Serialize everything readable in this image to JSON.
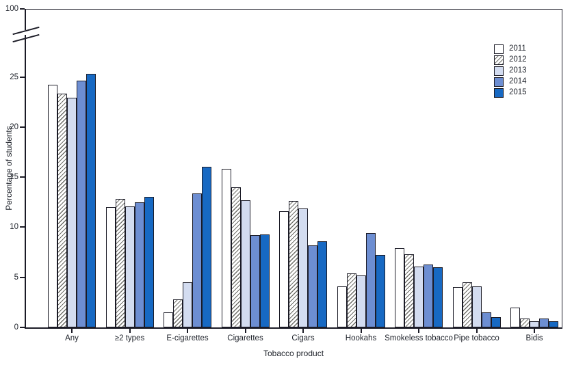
{
  "figure": {
    "background": "#ffffff"
  },
  "chart_data": {
    "type": "bar",
    "xlabel": "Tobacco product",
    "ylabel": "Percentage of students",
    "categories": [
      "Any",
      "≥2 types",
      "E-cigarettes",
      "Cigarettes",
      "Cigars",
      "Hookahs",
      "Smokeless tobacco",
      "Pipe tobacco",
      "Bidis"
    ],
    "series": [
      {
        "name": "2011",
        "fill": "#ffffff",
        "pattern": "none",
        "values": [
          24.2,
          12.0,
          1.5,
          15.8,
          11.6,
          4.1,
          7.9,
          4.0,
          2.0
        ]
      },
      {
        "name": "2012",
        "fill": "#ffffff",
        "pattern": "diagonal-hatch",
        "values": [
          23.3,
          12.8,
          2.8,
          14.0,
          12.6,
          5.4,
          7.3,
          4.5,
          0.9
        ]
      },
      {
        "name": "2013",
        "fill": "#d3dcf0",
        "pattern": "none",
        "values": [
          22.9,
          12.1,
          4.5,
          12.7,
          11.9,
          5.2,
          6.1,
          4.1,
          0.6
        ]
      },
      {
        "name": "2014",
        "fill": "#6d8ed2",
        "pattern": "none",
        "values": [
          24.6,
          12.5,
          13.4,
          9.2,
          8.2,
          9.4,
          6.3,
          1.5,
          0.9
        ]
      },
      {
        "name": "2015",
        "fill": "#1769c3",
        "pattern": "none",
        "values": [
          25.3,
          13.0,
          16.0,
          9.3,
          8.6,
          7.2,
          6.0,
          1.0,
          0.6
        ]
      }
    ],
    "yticks": [
      0,
      5,
      10,
      15,
      20,
      25
    ],
    "y_break_top_label": "100",
    "ylim": [
      0,
      100
    ],
    "axis_break": true,
    "grid": false,
    "legend_position": "top-right",
    "axis_color": "#1b1b26",
    "bar_border_color": "#1b1b26",
    "hatch_color": "#6e6e68",
    "text_color": "#1d2129"
  }
}
